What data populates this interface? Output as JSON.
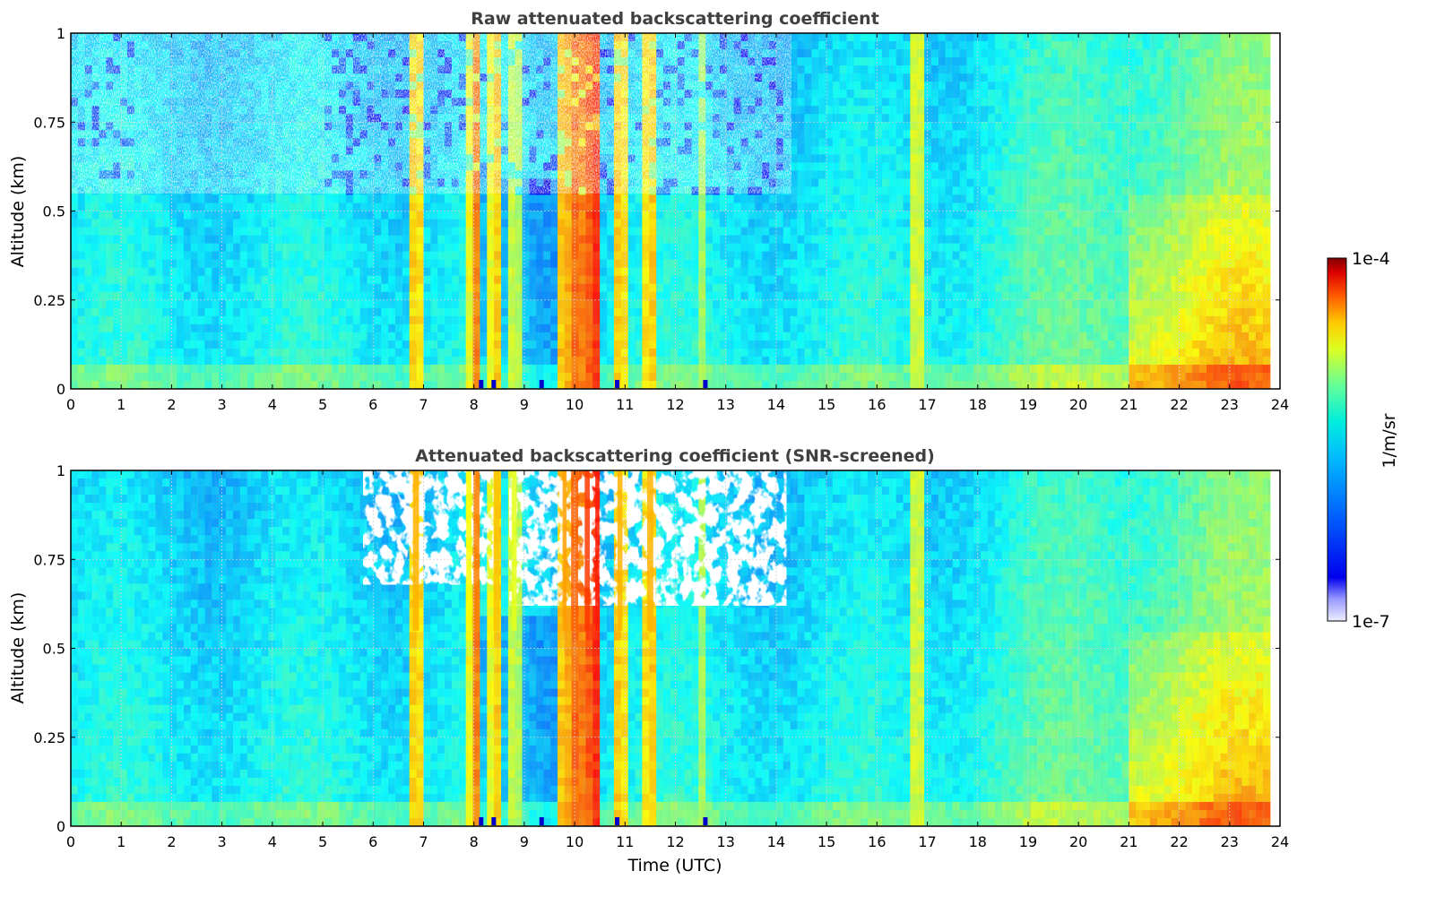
{
  "figure": {
    "panels": [
      {
        "title": "Raw attenuated backscattering coefficient",
        "ylabel": "Altitude (km)",
        "xlabel": ""
      },
      {
        "title": "Attenuated backscattering coefficient (SNR-screened)",
        "ylabel": "Altitude (km)",
        "xlabel": "Time (UTC)"
      }
    ],
    "colorbar": {
      "label": "1/m/sr",
      "max_label": "1e-4",
      "min_label": "1e-7"
    }
  },
  "chart_data": [
    {
      "type": "heatmap",
      "title": "Raw attenuated backscattering coefficient",
      "xlabel": "",
      "ylabel": "Altitude (km)",
      "xlim": [
        0,
        24
      ],
      "ylim": [
        0,
        1
      ],
      "x_ticks": [
        "0",
        "1",
        "2",
        "3",
        "4",
        "5",
        "6",
        "7",
        "8",
        "9",
        "10",
        "11",
        "12",
        "13",
        "14",
        "15",
        "16",
        "17",
        "18",
        "19",
        "20",
        "21",
        "22",
        "23",
        "24"
      ],
      "y_ticks": [
        "0",
        "0.25",
        "0.5",
        "0.75",
        "1"
      ],
      "grid": true,
      "color_scale": {
        "min": "1e-7",
        "max": "1e-4",
        "scale": "log",
        "colormap": "jet",
        "unit": "1/m/sr"
      },
      "data_extent_hours": [
        0,
        23.8
      ],
      "screened": false
    },
    {
      "type": "heatmap",
      "title": "Attenuated backscattering coefficient (SNR-screened)",
      "xlabel": "Time (UTC)",
      "ylabel": "Altitude (km)",
      "xlim": [
        0,
        24
      ],
      "ylim": [
        0,
        1
      ],
      "x_ticks": [
        "0",
        "1",
        "2",
        "3",
        "4",
        "5",
        "6",
        "7",
        "8",
        "9",
        "10",
        "11",
        "12",
        "13",
        "14",
        "15",
        "16",
        "17",
        "18",
        "19",
        "20",
        "21",
        "22",
        "23",
        "24"
      ],
      "y_ticks": [
        "0",
        "0.25",
        "0.5",
        "0.75",
        "1"
      ],
      "grid": true,
      "color_scale": {
        "min": "1e-7",
        "max": "1e-4",
        "scale": "log",
        "colormap": "jet",
        "unit": "1/m/sr"
      },
      "data_extent_hours": [
        0,
        23.8
      ],
      "screened": true,
      "screened_gap_hours": [
        [
          5.8,
          8.4
        ],
        [
          8.7,
          14.2
        ]
      ]
    }
  ]
}
